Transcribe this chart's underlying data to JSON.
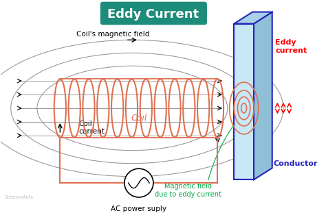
{
  "title": "Eddy Current",
  "title_bg_color": "#1e8c7a",
  "title_text_color": "white",
  "bg_color": "white",
  "coil_color": "#e07050",
  "conductor_face_color": "#c8e8f5",
  "conductor_top_color": "#a8d0e8",
  "conductor_right_color": "#90c0d8",
  "conductor_edge_color": "#2222bb",
  "eddy_circle_color": "#e07050",
  "field_line_color": "#999999",
  "coil_label": "Coil",
  "coil_label_color": "#e07050",
  "magnetic_field_label": "Coil's magnetic field",
  "eddy_current_label": "Eddy\ncurrent",
  "eddy_current_color": "red",
  "coil_current_label": "Coil\ncurrent",
  "ac_label": "AC power suply",
  "conductor_label": "Conductor",
  "conductor_label_color": "#2222bb",
  "mag_field_eddy_label": "Magnetic field\ndue to eddy current",
  "mag_field_eddy_color": "#00aa44",
  "green_arrow_color": "#00aa44",
  "red_arrow_color": "red",
  "watermark": "ScienceActs"
}
